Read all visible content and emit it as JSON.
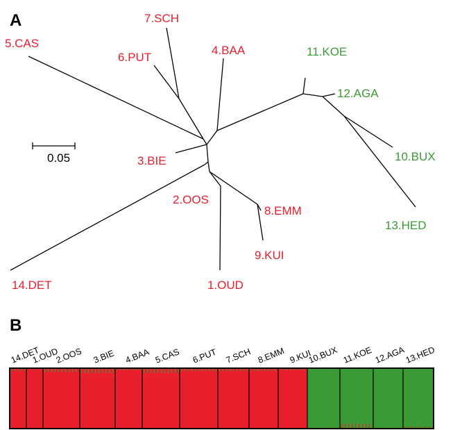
{
  "panel_a": {
    "letter": "A",
    "scale_label": "0.05",
    "labels": [
      {
        "id": "CAS",
        "text": "5.CAS",
        "group": "red"
      },
      {
        "id": "SCH",
        "text": "7.SCH",
        "group": "red"
      },
      {
        "id": "PUT",
        "text": "6.PUT",
        "group": "red"
      },
      {
        "id": "BAA",
        "text": "4.BAA",
        "group": "red"
      },
      {
        "id": "BIE",
        "text": "3.BIE",
        "group": "red"
      },
      {
        "id": "OOS",
        "text": "2.OOS",
        "group": "red"
      },
      {
        "id": "EMM",
        "text": "8.EMM",
        "group": "red"
      },
      {
        "id": "KUI",
        "text": "9.KUI",
        "group": "red"
      },
      {
        "id": "OUD",
        "text": "1.OUD",
        "group": "red"
      },
      {
        "id": "DET",
        "text": "14.DET",
        "group": "red"
      },
      {
        "id": "KOE",
        "text": "11.KOE",
        "group": "green"
      },
      {
        "id": "AGA",
        "text": "12.AGA",
        "group": "green"
      },
      {
        "id": "BUX",
        "text": "10.BUX",
        "group": "green"
      },
      {
        "id": "HED",
        "text": "13.HED",
        "group": "green"
      }
    ]
  },
  "panel_b": {
    "letter": "B",
    "groups": [
      {
        "label": "14.DET",
        "cluster": "red"
      },
      {
        "label": "1.OUD",
        "cluster": "red"
      },
      {
        "label": "2.OOS",
        "cluster": "red"
      },
      {
        "label": "3.BIE",
        "cluster": "red"
      },
      {
        "label": "4.BAA",
        "cluster": "red"
      },
      {
        "label": "5.CAS",
        "cluster": "red"
      },
      {
        "label": "6.PUT",
        "cluster": "red"
      },
      {
        "label": "7.SCH",
        "cluster": "red"
      },
      {
        "label": "8.EMM",
        "cluster": "red"
      },
      {
        "label": "9.KUI",
        "cluster": "red"
      },
      {
        "label": "10.BUX",
        "cluster": "green"
      },
      {
        "label": "11.KOE",
        "cluster": "green"
      },
      {
        "label": "12.AGA",
        "cluster": "green"
      },
      {
        "label": "13.HED",
        "cluster": "green"
      }
    ]
  },
  "colors": {
    "red": "#e8202e",
    "green": "#3a9a35",
    "line": "#000000"
  }
}
